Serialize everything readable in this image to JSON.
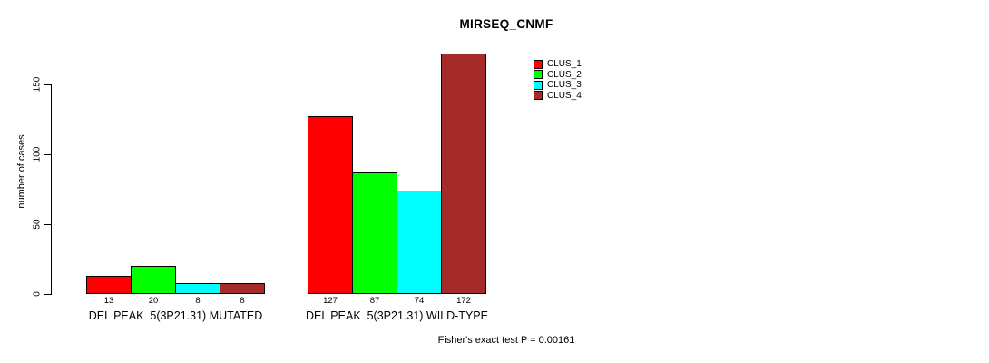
{
  "chart_data": {
    "type": "bar",
    "title": "MIRSEQ_CNMF",
    "ylabel": "number of cases",
    "xlabel": "",
    "categories": [
      "DEL PEAK  5(3P21.31) MUTATED",
      "DEL PEAK  5(3P21.31) WILD-TYPE"
    ],
    "series": [
      {
        "name": "CLUS_1",
        "color": "#ff0000",
        "values": [
          13,
          127
        ]
      },
      {
        "name": "CLUS_2",
        "color": "#00ff00",
        "values": [
          20,
          87
        ]
      },
      {
        "name": "CLUS_3",
        "color": "#00ffff",
        "values": [
          8,
          74
        ]
      },
      {
        "name": "CLUS_4",
        "color": "#a52a2a",
        "values": [
          8,
          172
        ]
      }
    ],
    "bar_value_labels": [
      [
        13,
        20,
        8,
        8
      ],
      [
        127,
        87,
        74,
        172
      ]
    ],
    "yticks": [
      0,
      50,
      100,
      150
    ],
    "ylim": [
      0,
      150
    ],
    "grid": "off",
    "legend_position": "top-right",
    "footnote": "Fisher's exact test P = 0.00161",
    "axis_color": "#000000",
    "background_color": "#ffffff"
  }
}
